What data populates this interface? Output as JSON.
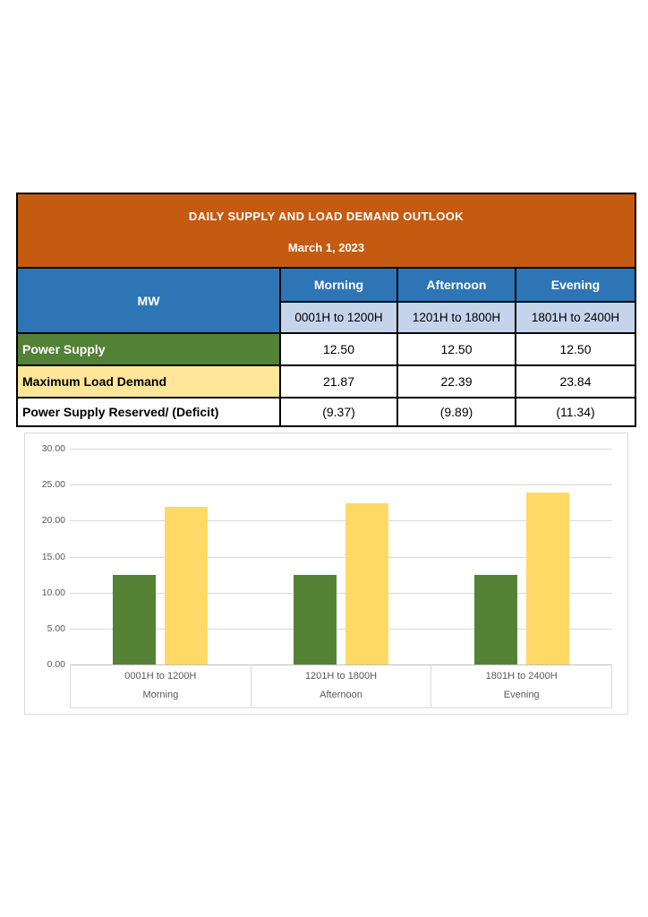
{
  "header": {
    "title": "DAILY SUPPLY AND LOAD DEMAND OUTLOOK",
    "date": "March 1, 2023"
  },
  "table": {
    "unit_label": "MW",
    "columns": [
      {
        "period": "Morning",
        "hours": "0001H to 1200H"
      },
      {
        "period": "Afternoon",
        "hours": "1201H to 1800H"
      },
      {
        "period": "Evening",
        "hours": "1801H to 2400H"
      }
    ],
    "rows": [
      {
        "label": "Power Supply",
        "values": [
          "12.50",
          "12.50",
          "12.50"
        ]
      },
      {
        "label": "Maximum Load Demand",
        "values": [
          "21.87",
          "22.39",
          "23.84"
        ]
      },
      {
        "label": "Power Supply Reserved/ (Deficit)",
        "values": [
          "(9.37)",
          "(9.89)",
          "(11.34)"
        ]
      }
    ]
  },
  "colors": {
    "header_bg": "#C55A11",
    "column_header_bg": "#2E75B6",
    "subheader_bg": "#C5D3EB",
    "power_supply_row_bg": "#538135",
    "load_demand_row_bg": "#FFE699",
    "bar_supply": "#548235",
    "bar_demand": "#FFD966",
    "gridline": "#D9D9D9",
    "axis_text": "#595959"
  },
  "chart_data": {
    "type": "bar",
    "categories": [
      "0001H to 1200H",
      "1201H to 1800H",
      "1801H to 2400H"
    ],
    "category_groups": [
      "Morning",
      "Afternoon",
      "Evening"
    ],
    "series": [
      {
        "name": "Power Supply",
        "color": "#548235",
        "values": [
          12.5,
          12.5,
          12.5
        ]
      },
      {
        "name": "Maximum Load Demand",
        "color": "#FFD966",
        "values": [
          21.87,
          22.39,
          23.84
        ]
      }
    ],
    "title": "",
    "xlabel": "",
    "ylabel": "",
    "ylim": [
      0,
      30
    ],
    "ytick_step": 5,
    "ytick_labels": [
      "0.00",
      "5.00",
      "10.00",
      "15.00",
      "20.00",
      "25.00",
      "30.00"
    ],
    "grid": true,
    "legend_position": "none"
  }
}
